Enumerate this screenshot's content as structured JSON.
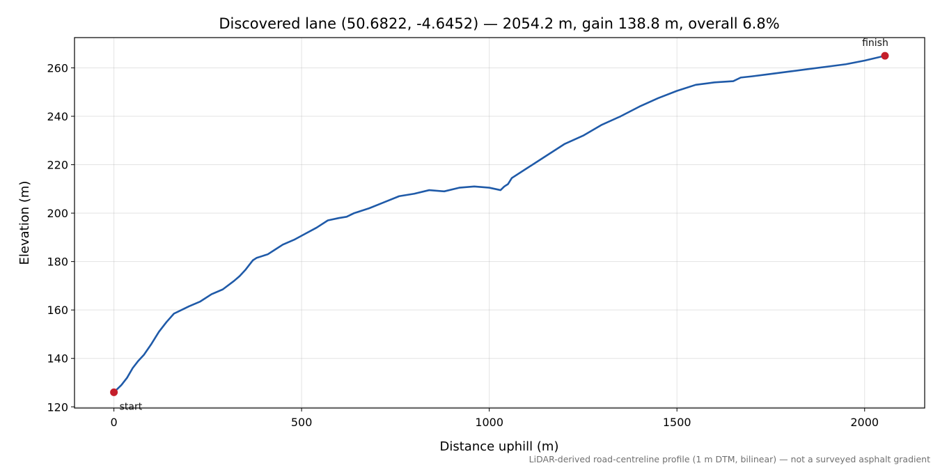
{
  "chart_data": {
    "type": "line",
    "title": "Discovered lane (50.6822, -4.6452) — 2054.2 m, gain 138.8 m, overall 6.8%",
    "xlabel": "Distance uphill (m)",
    "ylabel": "Elevation (m)",
    "xlim": [
      -105,
      2160
    ],
    "ylim": [
      119.5,
      272.5
    ],
    "x_ticks": [
      0,
      500,
      1000,
      1500,
      2000
    ],
    "y_ticks": [
      120,
      140,
      160,
      180,
      200,
      220,
      240,
      260
    ],
    "grid": true,
    "footnote": "LiDAR-derived road-centreline profile (1 m DTM, bilinear) — not a surveyed asphalt gradient",
    "line_color": "#1f5aa8",
    "marker_color": "#c41e2a",
    "series": [
      {
        "x": [
          0,
          10,
          20,
          35,
          50,
          65,
          80,
          100,
          120,
          140,
          160,
          180,
          200,
          230,
          260,
          290,
          320,
          335,
          350,
          370,
          380,
          390,
          410,
          430,
          450,
          480,
          510,
          540,
          570,
          600,
          620,
          640,
          680,
          720,
          760,
          800,
          840,
          880,
          920,
          960,
          1000,
          1030,
          1040,
          1050,
          1060,
          1100,
          1150,
          1200,
          1250,
          1300,
          1350,
          1400,
          1450,
          1500,
          1550,
          1600,
          1650,
          1670,
          1700,
          1750,
          1800,
          1850,
          1900,
          1950,
          2000,
          2054.2
        ],
        "y": [
          126,
          127.5,
          129,
          132,
          136,
          139,
          141.5,
          146,
          151,
          155,
          158.5,
          160,
          161.5,
          163.5,
          166.5,
          168.5,
          172,
          174,
          176.5,
          180.5,
          181.5,
          182,
          183,
          185,
          187,
          189,
          191.5,
          194,
          197,
          198,
          198.5,
          200,
          202,
          204.5,
          207,
          208,
          209.5,
          209,
          210.5,
          211,
          210.5,
          209.5,
          211,
          212,
          214.5,
          218.5,
          223.5,
          228.5,
          232,
          236.5,
          240,
          244,
          247.5,
          250.5,
          253,
          254,
          254.5,
          256,
          256.5,
          257.5,
          258.5,
          259.5,
          260.5,
          261.5,
          263,
          265
        ]
      }
    ],
    "annotations": [
      {
        "label": "start",
        "x": 0,
        "y": 126
      },
      {
        "label": "finish",
        "x": 2054.2,
        "y": 265
      }
    ]
  }
}
